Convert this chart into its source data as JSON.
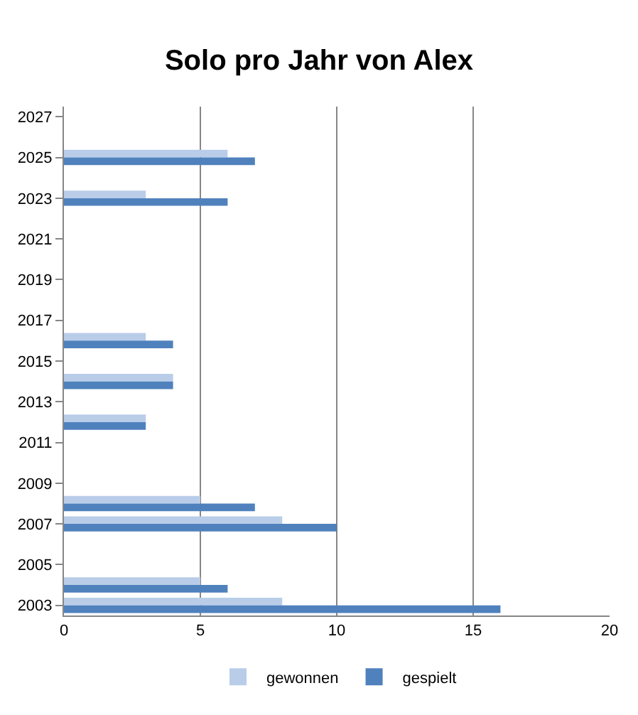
{
  "chart_data": {
    "type": "bar",
    "orientation": "horizontal",
    "title": "Solo pro Jahr von Alex",
    "categories": [
      "2027",
      null,
      "2025",
      null,
      "2023",
      null,
      "2021",
      null,
      "2019",
      null,
      "2017",
      null,
      "2015",
      null,
      "2013",
      null,
      "2011",
      null,
      "2009",
      null,
      "2007",
      null,
      "2005",
      null,
      "2003"
    ],
    "series": [
      {
        "name": "gewonnen",
        "color": "#b9cde9",
        "values": [
          null,
          null,
          6,
          null,
          3,
          null,
          null,
          null,
          null,
          null,
          null,
          3,
          null,
          4,
          null,
          3,
          null,
          null,
          null,
          5,
          8,
          null,
          null,
          5,
          8
        ]
      },
      {
        "name": "gespielt",
        "color": "#4f81bd",
        "values": [
          null,
          null,
          7,
          null,
          6,
          null,
          null,
          null,
          null,
          null,
          null,
          4,
          null,
          4,
          null,
          3,
          null,
          null,
          null,
          7,
          10,
          null,
          null,
          6,
          16
        ]
      }
    ],
    "xlim": [
      0,
      20
    ],
    "xticks": [
      0,
      5,
      10,
      15,
      20
    ],
    "grid": "x",
    "legend": "bottom"
  }
}
